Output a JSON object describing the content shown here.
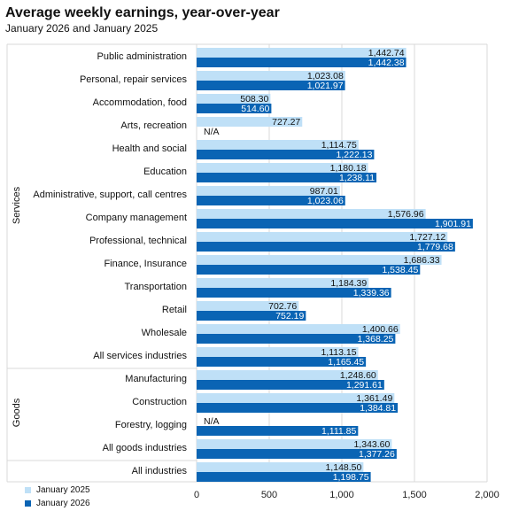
{
  "chart_data": {
    "type": "bar",
    "orientation": "horizontal",
    "title": "Average weekly earnings, year-over-year",
    "subtitle": "January 2026 and January 2025",
    "groups": [
      {
        "name": "Services",
        "categories": [
          "Public administration",
          "Personal, repair services",
          "Accommodation, food",
          "Arts, recreation",
          "Health and social",
          "Education",
          "Administrative, support, call centres",
          "Company management",
          "Professional, technical",
          "Finance, Insurance",
          "Transportation",
          "Retail",
          "Wholesale",
          "All services industries"
        ]
      },
      {
        "name": "Goods",
        "categories": [
          "Manufacturing",
          "Construction",
          "Forestry, logging",
          "All goods industries"
        ]
      },
      {
        "name": "",
        "categories": [
          "All industries"
        ]
      }
    ],
    "categories": [
      "Public administration",
      "Personal, repair services",
      "Accommodation, food",
      "Arts, recreation",
      "Health and social",
      "Education",
      "Administrative, support, call centres",
      "Company management",
      "Professional, technical",
      "Finance, Insurance",
      "Transportation",
      "Retail",
      "Wholesale",
      "All services industries",
      "Manufacturing",
      "Construction",
      "Forestry, logging",
      "All goods industries",
      "All industries"
    ],
    "series": [
      {
        "name": "January 2025",
        "color": "#bfe0f7",
        "values": [
          1442.74,
          1023.08,
          508.3,
          727.27,
          1114.75,
          1180.18,
          987.01,
          1576.96,
          1727.12,
          1686.33,
          1184.39,
          702.76,
          1400.66,
          1113.15,
          1248.6,
          1361.49,
          null,
          1343.6,
          1148.5
        ],
        "labels": [
          "1,442.74",
          "1,023.08",
          "508.30",
          "727.27",
          "1,114.75",
          "1,180.18",
          "987.01",
          "1,576.96",
          "1,727.12",
          "1,686.33",
          "1,184.39",
          "702.76",
          "1,400.66",
          "1,113.15",
          "1,248.60",
          "1,361.49",
          "N/A",
          "1,343.60",
          "1,148.50"
        ]
      },
      {
        "name": "January 2026",
        "color": "#0a64b4",
        "values": [
          1442.38,
          1021.97,
          514.6,
          null,
          1222.13,
          1238.11,
          1023.06,
          1901.91,
          1779.68,
          1538.45,
          1339.36,
          752.19,
          1368.25,
          1165.45,
          1291.61,
          1384.81,
          1111.85,
          1377.26,
          1198.75
        ],
        "labels": [
          "1,442.38",
          "1,021.97",
          "514.60",
          "N/A",
          "1,222.13",
          "1,238.11",
          "1,023.06",
          "1,901.91",
          "1,779.68",
          "1,538.45",
          "1,339.36",
          "752.19",
          "1,368.25",
          "1,165.45",
          "1,291.61",
          "1,384.81",
          "1,111.85",
          "1,377.26",
          "1,198.75"
        ]
      }
    ],
    "xlim": [
      0,
      2000
    ],
    "xticks": [
      0,
      500,
      1000,
      1500,
      2000
    ],
    "xtick_labels": [
      "0",
      "500",
      "1,000",
      "1,500",
      "2,000"
    ],
    "grid": true,
    "legend": "bottom-left"
  }
}
